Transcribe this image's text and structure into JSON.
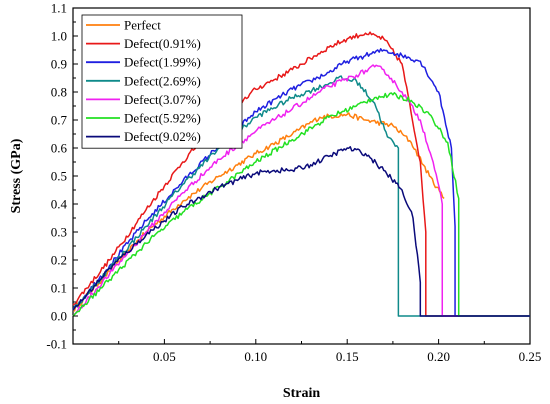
{
  "chart_data": {
    "type": "line",
    "xlabel": "Strain",
    "ylabel": "Stress (GPa)",
    "xlim": [
      0,
      0.25
    ],
    "ylim": [
      -0.1,
      1.1
    ],
    "x_ticks": [
      "0.05",
      "0.10",
      "0.15",
      "0.20",
      "0.25"
    ],
    "y_ticks": [
      "-0.1",
      "0.0",
      "0.1",
      "0.2",
      "0.3",
      "0.4",
      "0.5",
      "0.6",
      "0.7",
      "0.8",
      "0.9",
      "1.0",
      "1.1"
    ],
    "grid": false,
    "legend_position": "top-left",
    "series": [
      {
        "name": "Perfect",
        "color": "#ff7f0e",
        "x": [
          0,
          0.02,
          0.04,
          0.06,
          0.08,
          0.1,
          0.12,
          0.135,
          0.15,
          0.16,
          0.175,
          0.185,
          0.195,
          0.203
        ],
        "y": [
          0.02,
          0.16,
          0.3,
          0.41,
          0.5,
          0.58,
          0.65,
          0.71,
          0.72,
          0.7,
          0.68,
          0.62,
          0.5,
          0.42
        ]
      },
      {
        "name": "Defect(0.91%)",
        "color": "#e81818",
        "x": [
          0,
          0.02,
          0.04,
          0.06,
          0.08,
          0.1,
          0.12,
          0.14,
          0.15,
          0.16,
          0.17,
          0.18,
          0.19,
          0.193,
          0.193,
          0.25
        ],
        "y": [
          0.04,
          0.2,
          0.38,
          0.55,
          0.7,
          0.81,
          0.88,
          0.96,
          0.99,
          1.01,
          0.99,
          0.9,
          0.55,
          0.3,
          0.0,
          0.0
        ]
      },
      {
        "name": "Defect(1.99%)",
        "color": "#1f1fe0",
        "x": [
          0,
          0.02,
          0.04,
          0.06,
          0.08,
          0.1,
          0.12,
          0.13,
          0.14,
          0.15,
          0.16,
          0.17,
          0.18,
          0.19,
          0.2,
          0.207,
          0.209,
          0.209,
          0.25
        ],
        "y": [
          0.02,
          0.18,
          0.34,
          0.48,
          0.61,
          0.73,
          0.81,
          0.84,
          0.87,
          0.91,
          0.93,
          0.95,
          0.93,
          0.91,
          0.8,
          0.6,
          0.32,
          0.0,
          0.0
        ]
      },
      {
        "name": "Defect(2.69%)",
        "color": "#0f8a8a",
        "x": [
          0,
          0.02,
          0.04,
          0.06,
          0.08,
          0.1,
          0.12,
          0.14,
          0.145,
          0.155,
          0.165,
          0.172,
          0.178,
          0.178,
          0.25
        ],
        "y": [
          0.02,
          0.17,
          0.32,
          0.47,
          0.6,
          0.71,
          0.78,
          0.83,
          0.85,
          0.84,
          0.76,
          0.64,
          0.6,
          0.0,
          0.0
        ]
      },
      {
        "name": "Defect(3.07%)",
        "color": "#f022f0",
        "x": [
          0,
          0.02,
          0.04,
          0.06,
          0.08,
          0.1,
          0.12,
          0.14,
          0.155,
          0.165,
          0.17,
          0.18,
          0.19,
          0.197,
          0.202,
          0.202,
          0.25
        ],
        "y": [
          0.0,
          0.15,
          0.3,
          0.44,
          0.56,
          0.66,
          0.74,
          0.82,
          0.86,
          0.89,
          0.88,
          0.8,
          0.7,
          0.55,
          0.4,
          0.0,
          0.0
        ]
      },
      {
        "name": "Defect(5.92%)",
        "color": "#22e022",
        "x": [
          0,
          0.02,
          0.04,
          0.06,
          0.08,
          0.1,
          0.12,
          0.14,
          0.155,
          0.165,
          0.175,
          0.185,
          0.195,
          0.205,
          0.211,
          0.211,
          0.25
        ],
        "y": [
          0.0,
          0.13,
          0.26,
          0.37,
          0.46,
          0.55,
          0.63,
          0.71,
          0.75,
          0.78,
          0.79,
          0.77,
          0.72,
          0.62,
          0.42,
          0.0,
          0.0
        ]
      },
      {
        "name": "Defect(9.02%)",
        "color": "#0a0a7a",
        "x": [
          0,
          0.02,
          0.04,
          0.06,
          0.08,
          0.1,
          0.11,
          0.12,
          0.13,
          0.14,
          0.15,
          0.16,
          0.17,
          0.18,
          0.186,
          0.19,
          0.19,
          0.25
        ],
        "y": [
          0.02,
          0.17,
          0.29,
          0.39,
          0.46,
          0.51,
          0.52,
          0.52,
          0.54,
          0.57,
          0.6,
          0.58,
          0.52,
          0.45,
          0.35,
          0.12,
          0.0,
          0.0
        ]
      }
    ]
  }
}
